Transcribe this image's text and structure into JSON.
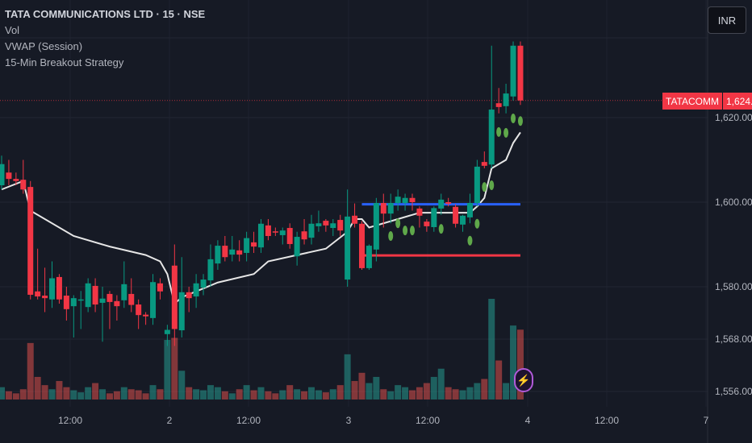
{
  "legend": {
    "title": "TATA COMMUNICATIONS LTD · 15 · NSE",
    "items": [
      "Vol",
      "VWAP (Session)",
      "15-Min Breakout Strategy"
    ]
  },
  "currency_button": "INR",
  "price_tag": {
    "symbol": "TATACOMM",
    "value": "1,624.05",
    "price": 1624.05
  },
  "y_axis": {
    "ticks": [
      {
        "label": "1,620.00",
        "value": 1620
      },
      {
        "label": "1,600.00",
        "value": 1600
      },
      {
        "label": "1,580.00",
        "value": 1580
      },
      {
        "label": "1,568.00",
        "value": 1568
      },
      {
        "label": "1,556.00",
        "value": 1556
      }
    ]
  },
  "x_axis": {
    "ticks": [
      "12:00",
      "2",
      "12:00",
      "3",
      "12:00",
      "4",
      "12:00",
      "7"
    ]
  },
  "colors": {
    "up": "#089981",
    "down": "#f23645",
    "vwap": "#e6e6e6",
    "breakout_high": "#2962ff",
    "breakout_low": "#f23645",
    "signal": "#5fa84a",
    "background": "#161a25"
  },
  "icons": {
    "flash": "lightning-bolt-icon"
  },
  "chart_data": {
    "type": "candlestick",
    "interval": "15",
    "ohlc": [
      [
        1604,
        1611,
        1603,
        1609
      ],
      [
        1607,
        1610,
        1604,
        1605.5
      ],
      [
        1605.5,
        1607,
        1604,
        1605
      ],
      [
        1605.3,
        1610,
        1602,
        1603
      ],
      [
        1603.6,
        1605,
        1577,
        1578.1
      ],
      [
        1578.9,
        1589,
        1577,
        1577.7
      ],
      [
        1577.9,
        1584.5,
        1574,
        1577.3
      ],
      [
        1577,
        1586,
        1575,
        1582
      ],
      [
        1582.3,
        1583,
        1576,
        1577
      ],
      [
        1577.9,
        1580,
        1572,
        1574.7
      ],
      [
        1575.4,
        1578,
        1568,
        1577.3
      ],
      [
        1577,
        1579,
        1570,
        1577
      ],
      [
        1575.2,
        1582,
        1574,
        1580.8
      ],
      [
        1580.2,
        1582,
        1574,
        1575.8
      ],
      [
        1576.2,
        1580,
        1567,
        1577.2
      ],
      [
        1578.3,
        1579,
        1570,
        1576.4
      ],
      [
        1576.6,
        1578,
        1572,
        1575.4
      ],
      [
        1576.8,
        1586,
        1575,
        1580.6
      ],
      [
        1578.3,
        1582,
        1574,
        1575.7
      ],
      [
        1575.8,
        1577,
        1570,
        1573.3
      ],
      [
        1573.4,
        1574,
        1571,
        1573
      ],
      [
        1572.6,
        1583,
        1571,
        1581.1
      ],
      [
        1580.8,
        1582,
        1577,
        1578.9
      ],
      [
        1568.8,
        1571,
        1566,
        1569.8
      ],
      [
        1585,
        1590,
        1566,
        1570
      ],
      [
        1569.7,
        1587,
        1568,
        1578.7
      ],
      [
        1578.7,
        1580,
        1574,
        1577.3
      ],
      [
        1577.7,
        1583,
        1575,
        1580.8
      ],
      [
        1579.8,
        1583,
        1578,
        1581.7
      ],
      [
        1581.5,
        1590,
        1580,
        1586.5
      ],
      [
        1585.5,
        1591,
        1584,
        1589.7
      ],
      [
        1589.7,
        1592,
        1586,
        1587
      ],
      [
        1587.6,
        1592,
        1586,
        1588.8
      ],
      [
        1588.6,
        1591,
        1586,
        1587.6
      ],
      [
        1588,
        1593,
        1586,
        1591.5
      ],
      [
        1590.5,
        1593,
        1588,
        1589.5
      ],
      [
        1589.3,
        1596,
        1588,
        1594.9
      ],
      [
        1594.5,
        1596,
        1591,
        1592
      ],
      [
        1593.1,
        1594,
        1592,
        1592.8
      ],
      [
        1592.2,
        1594,
        1590,
        1593.3
      ],
      [
        1593.9,
        1595,
        1589,
        1590.1
      ],
      [
        1587.2,
        1593,
        1585,
        1591.8
      ],
      [
        1593.1,
        1596,
        1590,
        1591.2
      ],
      [
        1591.6,
        1597,
        1590,
        1594.9
      ],
      [
        1594.3,
        1598,
        1593,
        1595
      ],
      [
        1595.6,
        1596,
        1593,
        1594.5
      ],
      [
        1593.9,
        1596,
        1592,
        1595
      ],
      [
        1595.8,
        1597,
        1592,
        1593.3
      ],
      [
        1581.7,
        1603,
        1580,
        1596.6
      ],
      [
        1596.8,
        1599.7,
        1594,
        1594.9
      ],
      [
        1594.9,
        1595.5,
        1584,
        1584.4
      ],
      [
        1584.4,
        1590,
        1584,
        1589.7
      ],
      [
        1588.8,
        1601,
        1586,
        1599.8
      ],
      [
        1599.8,
        1602,
        1594,
        1597.3
      ],
      [
        1597.3,
        1602,
        1595,
        1599.8
      ],
      [
        1599.8,
        1603,
        1598,
        1601.3
      ],
      [
        1599.8,
        1602,
        1598,
        1601
      ],
      [
        1601,
        1602,
        1598,
        1600
      ],
      [
        1598.5,
        1599,
        1594,
        1596.8
      ],
      [
        1595.4,
        1596,
        1593,
        1594.3
      ],
      [
        1594.1,
        1599,
        1593,
        1598.6
      ],
      [
        1598.5,
        1602,
        1597,
        1600.6
      ],
      [
        1600,
        1601,
        1599,
        1599.6
      ],
      [
        1598.9,
        1599.5,
        1594,
        1594.9
      ],
      [
        1594.7,
        1597,
        1593,
        1596.8
      ],
      [
        1596.4,
        1602,
        1595,
        1599.8
      ],
      [
        1599.8,
        1610,
        1599,
        1608.4
      ],
      [
        1609.5,
        1612,
        1608,
        1608.6
      ],
      [
        1608.9,
        1637,
        1608,
        1621.9
      ],
      [
        1623.4,
        1627,
        1621,
        1622.5
      ],
      [
        1622.7,
        1628,
        1621,
        1625.7
      ],
      [
        1625,
        1638,
        1624,
        1637
      ],
      [
        1637,
        1638,
        1623,
        1624.05
      ]
    ],
    "volume": [
      12,
      8,
      6,
      10,
      55,
      22,
      14,
      10,
      18,
      12,
      9,
      7,
      12,
      16,
      10,
      6,
      8,
      12,
      10,
      9,
      6,
      14,
      10,
      58,
      60,
      28,
      12,
      10,
      9,
      14,
      12,
      8,
      6,
      10,
      14,
      9,
      12,
      8,
      6,
      9,
      14,
      10,
      8,
      12,
      9,
      7,
      10,
      14,
      44,
      18,
      26,
      16,
      22,
      10,
      8,
      14,
      12,
      9,
      12,
      16,
      22,
      30,
      12,
      10,
      9,
      12,
      16,
      20,
      98,
      38,
      16,
      72,
      68
    ],
    "vwap": [
      [
        0,
        1603
      ],
      [
        3,
        1605
      ],
      [
        4,
        1598
      ],
      [
        10,
        1592
      ],
      [
        15,
        1589.5
      ],
      [
        20,
        1587.5
      ],
      [
        22,
        1586
      ],
      [
        23,
        1583
      ],
      [
        24,
        1576
      ],
      [
        25,
        1577.5
      ],
      [
        30,
        1581
      ],
      [
        35,
        1583
      ],
      [
        37,
        1586
      ],
      [
        45,
        1589
      ],
      [
        48,
        1593
      ],
      [
        49,
        1596
      ],
      [
        50,
        1596
      ],
      [
        51,
        1594
      ],
      [
        55,
        1596
      ],
      [
        58,
        1597.5
      ],
      [
        62,
        1597.5
      ],
      [
        65,
        1597.5
      ],
      [
        66,
        1599
      ],
      [
        67,
        1601
      ],
      [
        68,
        1608
      ],
      [
        69,
        1609
      ],
      [
        70,
        1610
      ],
      [
        71,
        1614
      ],
      [
        72,
        1616.5
      ]
    ],
    "breakout_levels": {
      "high": 1599.5,
      "low": 1587.4,
      "from_candle": 50,
      "to_candle": 72
    },
    "signals": [
      [
        54,
        1592
      ],
      [
        55,
        1595
      ],
      [
        56,
        1593.3
      ],
      [
        57,
        1593.3
      ],
      [
        61,
        1593.7
      ],
      [
        65,
        1590.9
      ],
      [
        66,
        1594.9
      ],
      [
        67,
        1603.6
      ],
      [
        68,
        1604
      ],
      [
        69,
        1616.6
      ],
      [
        70,
        1616.4
      ],
      [
        71,
        1619.8
      ],
      [
        72,
        1619.2
      ]
    ]
  }
}
